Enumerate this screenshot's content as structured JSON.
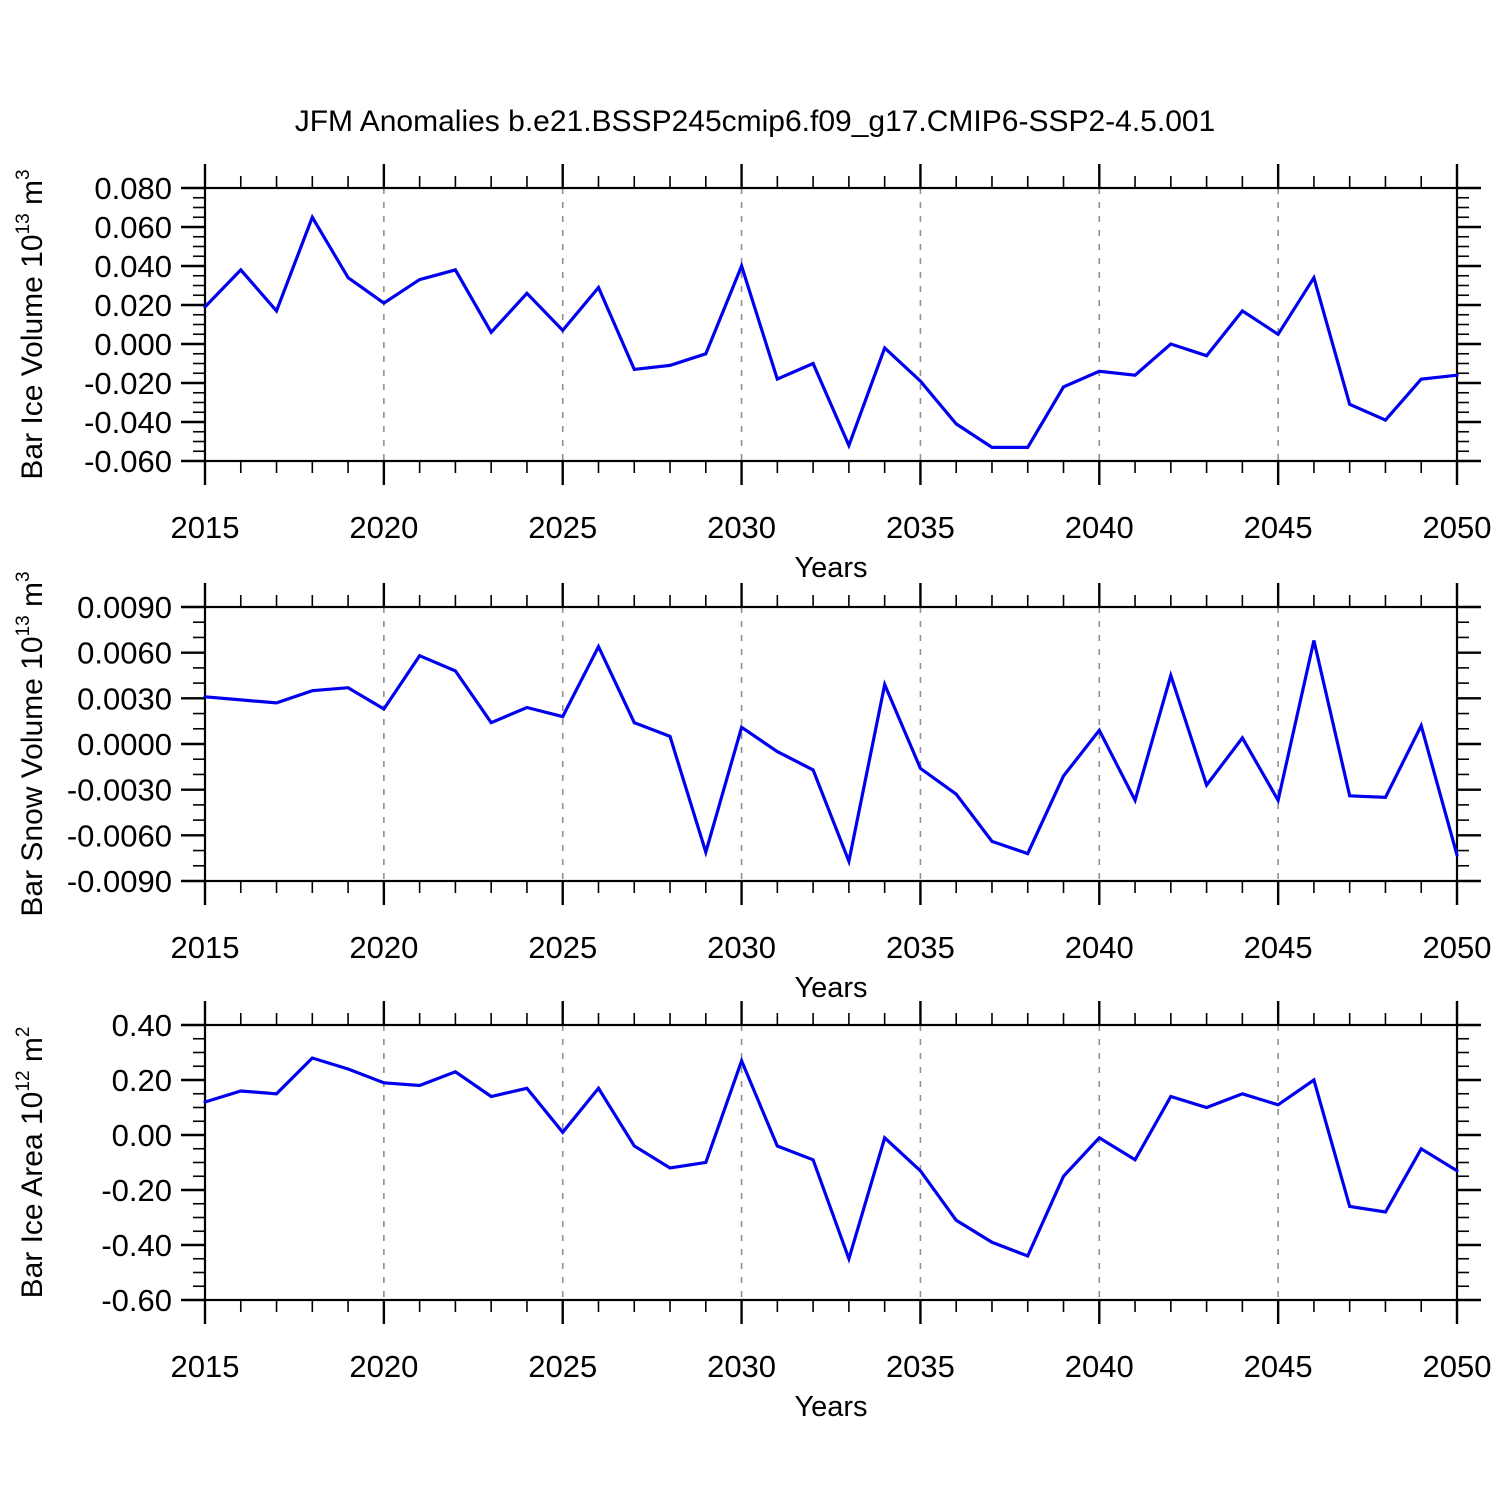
{
  "page": {
    "title": "JFM Anomalies b.e21.BSSP245cmip6.f09_g17.CMIP6-SSP2-4.5.001"
  },
  "colors": {
    "line": "#0000ee",
    "frame": "#000000",
    "grid": "#909090",
    "text": "#000000",
    "background": "#ffffff"
  },
  "x_axis": {
    "label": "Years",
    "start": 2015,
    "end": 2050,
    "major_step": 5,
    "minor_step": 1,
    "tick_labels": [
      "2015",
      "2020",
      "2025",
      "2030",
      "2035",
      "2040",
      "2045",
      "2050"
    ],
    "gridline_years": [
      2020,
      2025,
      2030,
      2035,
      2040,
      2045
    ]
  },
  "chart_data": [
    {
      "type": "line",
      "ylabel": "Bar Ice Volume 10^13 m^3",
      "ylabel_parts": [
        {
          "t": "Bar Ice Volume 10",
          "sup": false
        },
        {
          "t": "13",
          "sup": true
        },
        {
          "t": " m",
          "sup": false
        },
        {
          "t": "3",
          "sup": true
        }
      ],
      "xlabel": "Years",
      "ymin": -0.06,
      "ymax": 0.08,
      "major_step": 0.02,
      "minor_step": 0.005,
      "decimals": 3,
      "x": [
        2015,
        2016,
        2017,
        2018,
        2019,
        2020,
        2021,
        2022,
        2023,
        2024,
        2025,
        2026,
        2027,
        2028,
        2029,
        2030,
        2031,
        2032,
        2033,
        2034,
        2035,
        2036,
        2037,
        2038,
        2039,
        2040,
        2041,
        2042,
        2043,
        2044,
        2045,
        2046,
        2047,
        2048,
        2049,
        2050
      ],
      "values": [
        0.019,
        0.038,
        0.017,
        0.065,
        0.034,
        0.021,
        0.033,
        0.038,
        0.006,
        0.026,
        0.007,
        0.029,
        -0.013,
        -0.011,
        -0.005,
        0.04,
        -0.018,
        -0.01,
        -0.052,
        -0.002,
        -0.019,
        -0.041,
        -0.053,
        -0.053,
        -0.022,
        -0.014,
        -0.016,
        0.0,
        -0.006,
        0.017,
        0.005,
        0.034,
        -0.031,
        -0.039,
        -0.018,
        -0.016
      ]
    },
    {
      "type": "line",
      "ylabel": "Bar Snow Volume 10^13 m^3",
      "ylabel_parts": [
        {
          "t": "Bar Snow Volume 10",
          "sup": false
        },
        {
          "t": "13",
          "sup": true
        },
        {
          "t": " m",
          "sup": false
        },
        {
          "t": "3",
          "sup": true
        }
      ],
      "xlabel": "Years",
      "ymin": -0.009,
      "ymax": 0.009,
      "major_step": 0.003,
      "minor_step": 0.001,
      "decimals": 4,
      "x": [
        2015,
        2016,
        2017,
        2018,
        2019,
        2020,
        2021,
        2022,
        2023,
        2024,
        2025,
        2026,
        2027,
        2028,
        2029,
        2030,
        2031,
        2032,
        2033,
        2034,
        2035,
        2036,
        2037,
        2038,
        2039,
        2040,
        2041,
        2042,
        2043,
        2044,
        2045,
        2046,
        2047,
        2048,
        2049,
        2050
      ],
      "values": [
        0.0031,
        0.0029,
        0.0027,
        0.0035,
        0.0037,
        0.0023,
        0.0058,
        0.0048,
        0.0014,
        0.0024,
        0.0018,
        0.0064,
        0.0014,
        0.0005,
        -0.0071,
        0.0011,
        -0.0005,
        -0.0017,
        -0.0077,
        0.0039,
        -0.0016,
        -0.0033,
        -0.0064,
        -0.0072,
        -0.0021,
        0.0009,
        -0.0037,
        0.0045,
        -0.0027,
        0.0004,
        -0.0037,
        0.0068,
        -0.0034,
        -0.0035,
        0.0012,
        -0.0073
      ]
    },
    {
      "type": "line",
      "ylabel": "Bar Ice Area 10^12 m^2",
      "ylabel_parts": [
        {
          "t": "Bar Ice Area 10",
          "sup": false
        },
        {
          "t": "12",
          "sup": true
        },
        {
          "t": " m",
          "sup": false
        },
        {
          "t": "2",
          "sup": true
        }
      ],
      "xlabel": "Years",
      "ymin": -0.6,
      "ymax": 0.4,
      "major_step": 0.2,
      "minor_step": 0.05,
      "decimals": 2,
      "x": [
        2015,
        2016,
        2017,
        2018,
        2019,
        2020,
        2021,
        2022,
        2023,
        2024,
        2025,
        2026,
        2027,
        2028,
        2029,
        2030,
        2031,
        2032,
        2033,
        2034,
        2035,
        2036,
        2037,
        2038,
        2039,
        2040,
        2041,
        2042,
        2043,
        2044,
        2045,
        2046,
        2047,
        2048,
        2049,
        2050
      ],
      "values": [
        0.12,
        0.16,
        0.15,
        0.28,
        0.24,
        0.19,
        0.18,
        0.23,
        0.14,
        0.17,
        0.01,
        0.17,
        -0.04,
        -0.12,
        -0.1,
        0.27,
        -0.04,
        -0.09,
        -0.45,
        -0.01,
        -0.13,
        -0.31,
        -0.39,
        -0.44,
        -0.15,
        -0.01,
        -0.09,
        0.14,
        0.1,
        0.15,
        0.11,
        0.2,
        -0.26,
        -0.28,
        -0.05,
        -0.13
      ]
    }
  ]
}
